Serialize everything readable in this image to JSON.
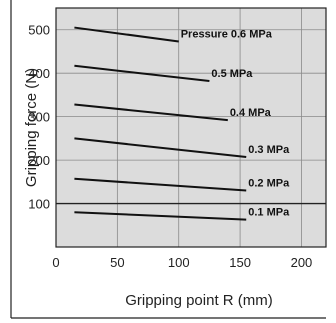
{
  "chart_data": {
    "type": "line",
    "xlabel": "Gripping point R (mm)",
    "ylabel": "Gripping force (N)",
    "xlim": [
      0,
      220
    ],
    "ylim": [
      0,
      550
    ],
    "x_ticks": [
      0,
      50,
      100,
      150,
      200
    ],
    "y_ticks": [
      100,
      200,
      300,
      400,
      500
    ],
    "grid": true,
    "background": "#dcdcdc",
    "series": [
      {
        "name": "Pressure 0.6 MPa",
        "x": [
          15,
          100
        ],
        "y": [
          505,
          473
        ]
      },
      {
        "name": "0.5 MPa",
        "x": [
          15,
          125
        ],
        "y": [
          417,
          382
        ]
      },
      {
        "name": "0.4 MPa",
        "x": [
          15,
          140
        ],
        "y": [
          328,
          292
        ]
      },
      {
        "name": "0.3 MPa",
        "x": [
          15,
          155
        ],
        "y": [
          250,
          207
        ]
      },
      {
        "name": "0.2 MPa",
        "x": [
          15,
          155
        ],
        "y": [
          157,
          130
        ]
      },
      {
        "name": "0.1 MPa",
        "x": [
          15,
          155
        ],
        "y": [
          80,
          63
        ]
      }
    ]
  }
}
